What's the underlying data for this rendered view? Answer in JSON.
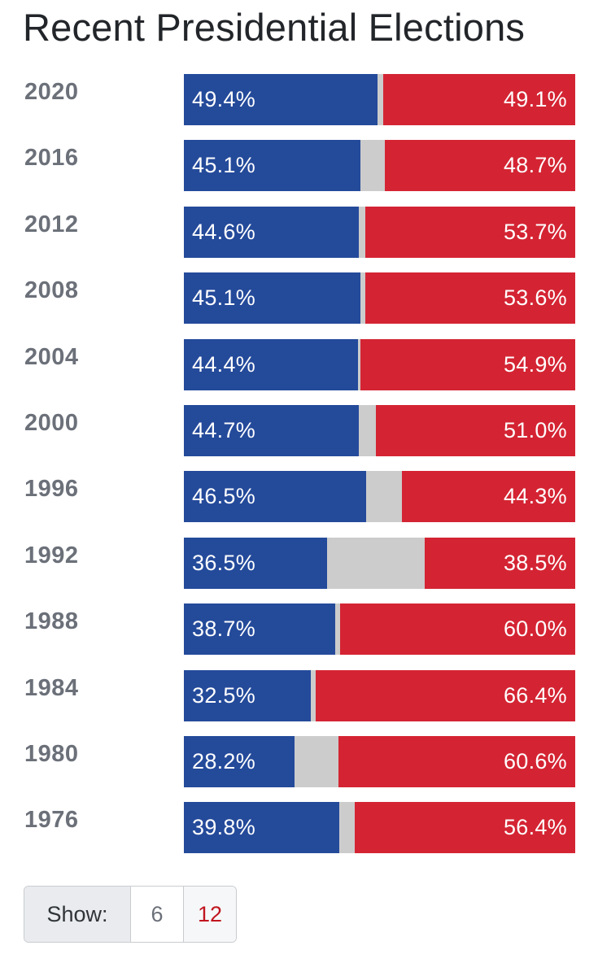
{
  "chart_data": {
    "type": "bar",
    "title": "Recent Presidential Elections",
    "categories": [
      "2020",
      "2016",
      "2012",
      "2008",
      "2004",
      "2000",
      "1996",
      "1992",
      "1988",
      "1984",
      "1980",
      "1976"
    ],
    "series": [
      {
        "values": [
          49.4,
          45.1,
          44.6,
          45.1,
          44.4,
          44.7,
          46.5,
          36.5,
          38.7,
          32.5,
          28.2,
          39.8
        ],
        "labels": [
          "49.4%",
          "45.1%",
          "44.6%",
          "45.1%",
          "44.4%",
          "44.7%",
          "46.5%",
          "36.5%",
          "38.7%",
          "32.5%",
          "28.2%",
          "39.8%"
        ],
        "color": "#244a9a"
      },
      {
        "values": [
          49.1,
          48.7,
          53.7,
          53.6,
          54.9,
          51.0,
          44.3,
          38.5,
          60.0,
          66.4,
          60.6,
          56.4
        ],
        "labels": [
          "49.1%",
          "48.7%",
          "53.7%",
          "53.6%",
          "54.9%",
          "51.0%",
          "44.3%",
          "38.5%",
          "60.0%",
          "66.4%",
          "60.6%",
          "56.4%"
        ],
        "color": "#d42433"
      }
    ],
    "other_color": "#cccccc",
    "stacked": true,
    "orientation": "horizontal",
    "xlim": [
      0,
      100
    ]
  },
  "show_control": {
    "label": "Show:",
    "options": [
      "6",
      "12"
    ],
    "selected": "12",
    "selected_color": "#c0141f"
  }
}
